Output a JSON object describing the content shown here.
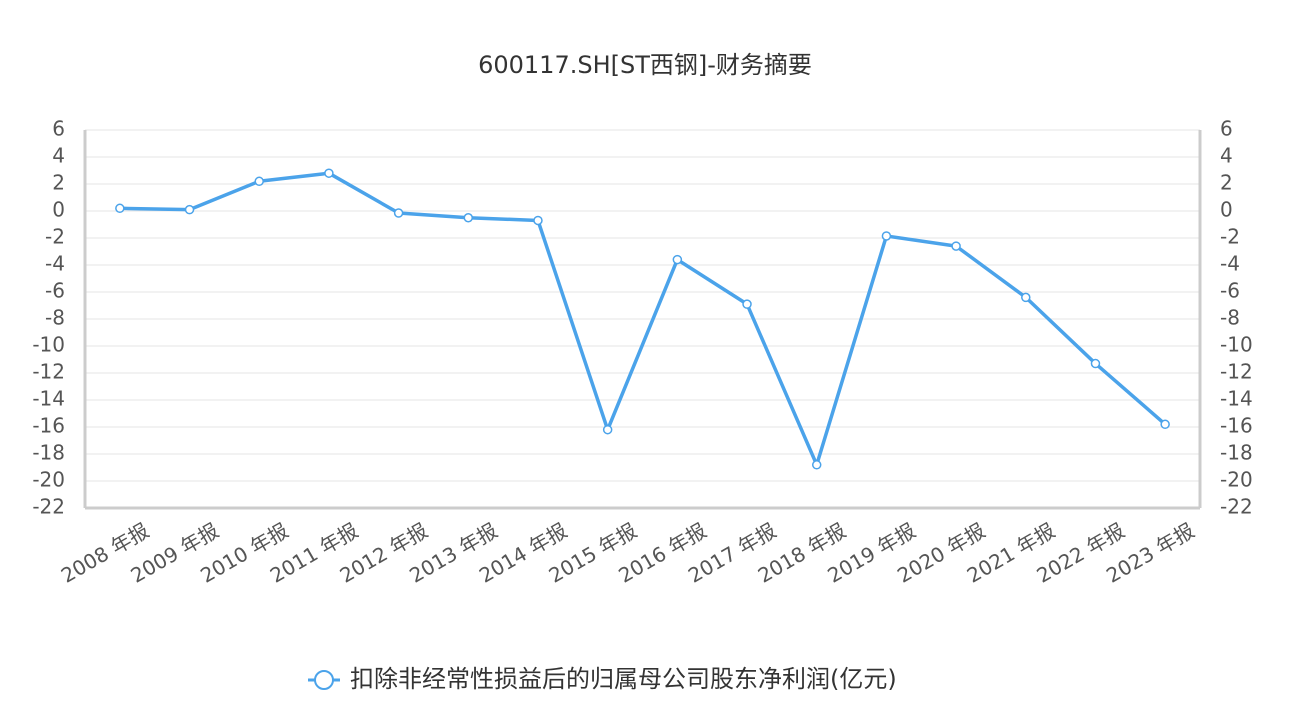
{
  "chart_data": {
    "type": "line",
    "title": "600117.SH[ST西钢]-财务摘要",
    "categories": [
      "2008 年报",
      "2009 年报",
      "2010 年报",
      "2011 年报",
      "2012 年报",
      "2013 年报",
      "2014 年报",
      "2015 年报",
      "2016 年报",
      "2017 年报",
      "2018 年报",
      "2019 年报",
      "2020 年报",
      "2021 年报",
      "2022 年报",
      "2023 年报"
    ],
    "series": [
      {
        "name": "扣除非经常性损益后的归属母公司股东净利润(亿元)",
        "color": "#4ba3ea",
        "values": [
          0.2,
          0.1,
          2.2,
          2.8,
          -0.15,
          -0.5,
          -0.7,
          -16.2,
          -3.6,
          -6.9,
          -18.8,
          -1.85,
          -2.6,
          -6.4,
          -11.3,
          -15.8
        ]
      }
    ],
    "ylim": [
      -22,
      6
    ],
    "yticks": [
      6,
      4,
      2,
      0,
      -2,
      -4,
      -6,
      -8,
      -10,
      -12,
      -14,
      -16,
      -18,
      -20,
      -22
    ],
    "y2lim": [
      -22,
      6
    ],
    "y2ticks": [
      6,
      4,
      2,
      0,
      -2,
      -4,
      -6,
      -8,
      -10,
      -12,
      -14,
      -16,
      -18,
      -20,
      -22
    ],
    "grid": true,
    "legend": "bottom"
  }
}
